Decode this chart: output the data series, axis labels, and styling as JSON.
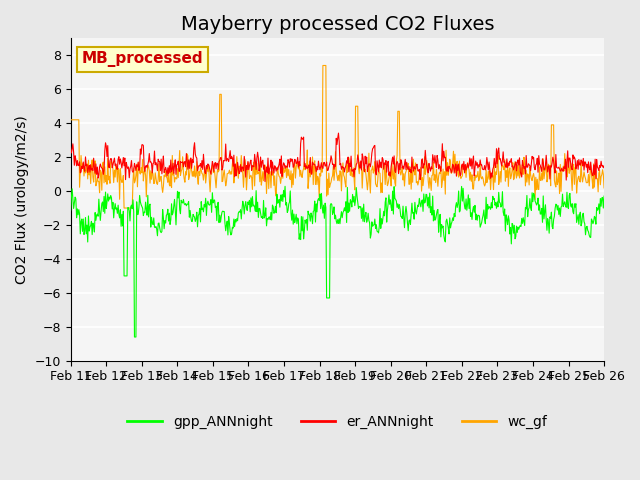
{
  "title": "Mayberry processed CO2 Fluxes",
  "ylabel": "CO2 Flux (urology/m2/s)",
  "ylim": [
    -10,
    9
  ],
  "yticks": [
    -10,
    -8,
    -6,
    -4,
    -2,
    0,
    2,
    4,
    6,
    8
  ],
  "color_gpp": "#00ff00",
  "color_er": "#ff0000",
  "color_wc": "#ffa500",
  "legend_label_gpp": "gpp_ANNnight",
  "legend_label_er": "er_ANNnight",
  "legend_label_wc": "wc_gf",
  "watermark_text": "MB_processed",
  "watermark_bg": "#ffffcc",
  "watermark_border": "#ccaa00",
  "watermark_text_color": "#cc0000",
  "bg_color": "#e8e8e8",
  "plot_bg_color": "#f5f5f5",
  "n_days": 15,
  "points_per_day": 48,
  "tick_dates": [
    "Feb 11",
    "Feb 12",
    "Feb 13",
    "Feb 14",
    "Feb 15",
    "Feb 16",
    "Feb 17",
    "Feb 18",
    "Feb 19",
    "Feb 20",
    "Feb 21",
    "Feb 22",
    "Feb 23",
    "Feb 24",
    "Feb 25",
    "Feb 26"
  ],
  "line_width": 0.8,
  "font_size_title": 14,
  "font_size_ticks": 9,
  "font_size_ylabel": 10,
  "font_size_legend": 10,
  "seed": 42
}
